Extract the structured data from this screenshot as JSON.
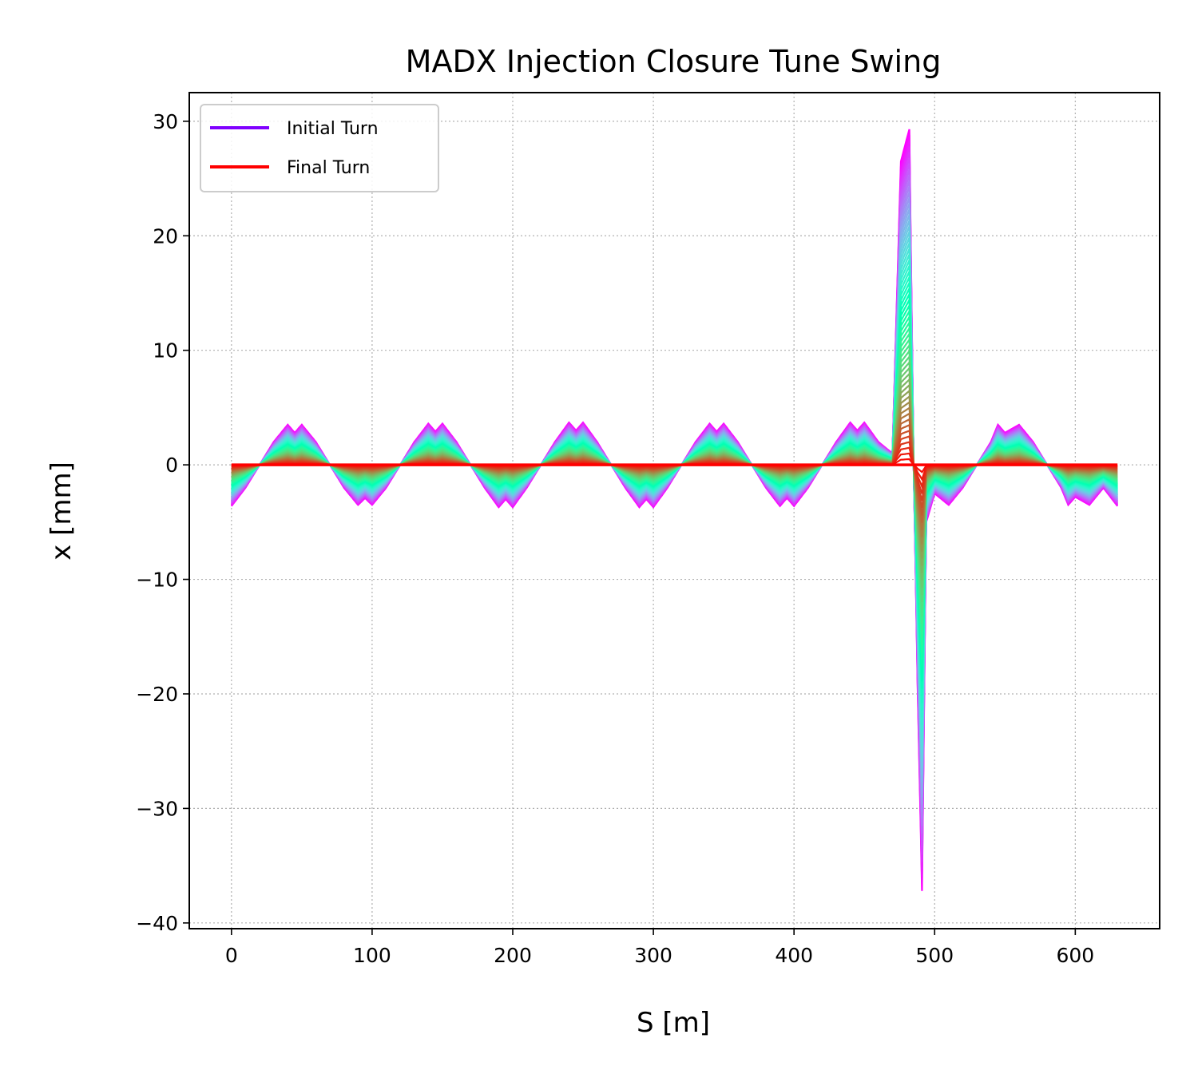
{
  "chart_data": {
    "type": "line",
    "title": "MADX Injection Closure Tune Swing",
    "xlabel": "S [m]",
    "ylabel": "x [mm]",
    "xlim": [
      -30,
      660
    ],
    "ylim": [
      -40.5,
      32.5
    ],
    "xticks": [
      0,
      100,
      200,
      300,
      400,
      500,
      600
    ],
    "yticks": [
      30,
      20,
      10,
      0,
      -10,
      -20,
      -30,
      -40
    ],
    "xtick_labels": [
      "0",
      "100",
      "200",
      "300",
      "400",
      "500",
      "600"
    ],
    "ytick_labels": [
      "30",
      "20",
      "10",
      "0",
      "−10",
      "−20",
      "−30",
      "−40"
    ],
    "grid": true,
    "legend_position": "top-left",
    "n_turns": 60,
    "colormap": "rainbow",
    "s_range": [
      0,
      630
    ],
    "series": [
      {
        "name": "Initial Turn",
        "color": "#8000ff",
        "x": [
          0,
          10,
          20,
          30,
          40,
          45,
          50,
          60,
          70,
          80,
          90,
          95,
          100,
          110,
          120,
          130,
          140,
          145,
          150,
          160,
          170,
          180,
          190,
          195,
          200,
          210,
          220,
          230,
          240,
          245,
          250,
          260,
          270,
          280,
          290,
          295,
          300,
          310,
          320,
          330,
          340,
          345,
          350,
          360,
          370,
          380,
          390,
          395,
          400,
          410,
          420,
          430,
          440,
          445,
          450,
          460,
          470,
          476,
          482,
          485,
          488,
          491,
          494,
          500,
          510,
          520,
          530,
          540,
          545,
          550,
          560,
          570,
          580,
          590,
          595,
          600,
          610,
          620,
          630
        ],
        "y": [
          -3.6,
          -2.0,
          0.0,
          2.0,
          3.5,
          2.8,
          3.5,
          2.0,
          0.0,
          -2.0,
          -3.5,
          -2.9,
          -3.5,
          -2.0,
          0.0,
          2.0,
          3.6,
          2.9,
          3.6,
          2.0,
          0.0,
          -2.0,
          -3.7,
          -3.0,
          -3.7,
          -2.0,
          0.0,
          2.0,
          3.7,
          3.0,
          3.7,
          2.0,
          0.0,
          -2.0,
          -3.7,
          -3.0,
          -3.7,
          -2.0,
          0.0,
          2.0,
          3.6,
          2.9,
          3.6,
          2.0,
          0.0,
          -2.0,
          -3.6,
          -2.9,
          -3.6,
          -2.0,
          0.0,
          2.0,
          3.7,
          3.0,
          3.7,
          2.0,
          1.0,
          26.5,
          29.3,
          0.5,
          -20.0,
          -37.2,
          -5.0,
          -2.5,
          -3.5,
          -2.0,
          0.0,
          2.0,
          3.5,
          2.8,
          3.5,
          2.0,
          0.0,
          -2.0,
          -3.5,
          -2.8,
          -3.5,
          -2.0,
          -3.6
        ]
      },
      {
        "name": "Final Turn",
        "color": "#ff0000",
        "x": [
          0,
          630
        ],
        "y": [
          0,
          0
        ]
      }
    ]
  }
}
